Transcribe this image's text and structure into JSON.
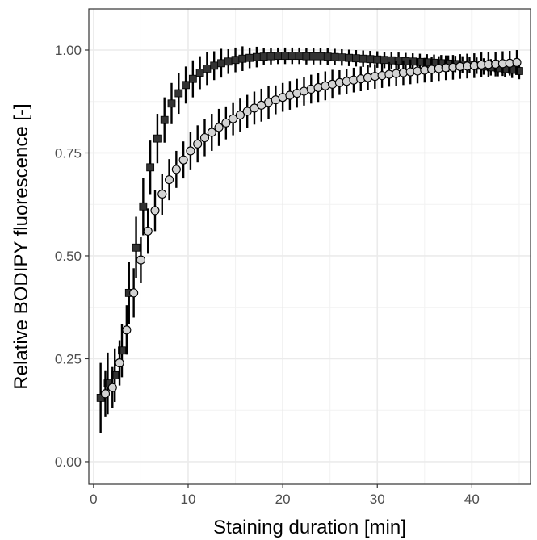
{
  "chart_data": {
    "type": "scatter",
    "title": "",
    "xlabel": "Staining duration [min]",
    "ylabel": "Relative BODIPY fluorescence [-]",
    "xlim": [
      -0.5,
      46.2
    ],
    "ylim": [
      -0.055,
      1.1
    ],
    "x_ticks": [
      0,
      10,
      20,
      30,
      40
    ],
    "x_tick_labels": [
      "0",
      "10",
      "20",
      "30",
      "40"
    ],
    "y_ticks": [
      0,
      0.25,
      0.5,
      0.75,
      1.0
    ],
    "y_tick_labels": [
      "0.00",
      "0.25",
      "0.50",
      "0.75",
      "1.00"
    ],
    "grid": true,
    "legend": "none",
    "series": [
      {
        "marker": "square",
        "color": "#333333",
        "x": [
          0.75,
          1.5,
          2.25,
          3.0,
          3.75,
          4.5,
          5.25,
          6.0,
          6.75,
          7.5,
          8.25,
          9.0,
          9.75,
          10.5,
          11.25,
          12.0,
          12.75,
          13.5,
          14.25,
          15.0,
          15.75,
          16.5,
          17.25,
          18.0,
          18.75,
          19.5,
          20.25,
          21.0,
          21.75,
          22.5,
          23.25,
          24.0,
          24.75,
          25.5,
          26.25,
          27.0,
          27.75,
          28.5,
          29.25,
          30.0,
          30.75,
          31.5,
          32.25,
          33.0,
          33.75,
          34.5,
          35.25,
          36.0,
          36.75,
          37.5,
          38.25,
          39.0,
          39.75,
          40.5,
          41.25,
          42.0,
          42.75,
          43.5,
          44.25,
          45.0
        ],
        "y": [
          0.155,
          0.19,
          0.21,
          0.27,
          0.41,
          0.52,
          0.62,
          0.715,
          0.785,
          0.83,
          0.87,
          0.895,
          0.915,
          0.93,
          0.945,
          0.955,
          0.962,
          0.968,
          0.972,
          0.976,
          0.979,
          0.981,
          0.983,
          0.984,
          0.985,
          0.986,
          0.986,
          0.986,
          0.986,
          0.985,
          0.985,
          0.985,
          0.984,
          0.983,
          0.982,
          0.981,
          0.98,
          0.979,
          0.978,
          0.977,
          0.976,
          0.975,
          0.974,
          0.973,
          0.972,
          0.971,
          0.97,
          0.969,
          0.968,
          0.967,
          0.966,
          0.965,
          0.964,
          0.962,
          0.96,
          0.958,
          0.956,
          0.954,
          0.952,
          0.949
        ],
        "error": [
          0.085,
          0.075,
          0.065,
          0.065,
          0.075,
          0.075,
          0.07,
          0.065,
          0.06,
          0.055,
          0.05,
          0.05,
          0.045,
          0.045,
          0.04,
          0.04,
          0.035,
          0.035,
          0.03,
          0.03,
          0.03,
          0.025,
          0.025,
          0.02,
          0.02,
          0.02,
          0.02,
          0.02,
          0.02,
          0.02,
          0.02,
          0.02,
          0.02,
          0.02,
          0.02,
          0.02,
          0.02,
          0.02,
          0.02,
          0.02,
          0.02,
          0.02,
          0.02,
          0.02,
          0.02,
          0.02,
          0.02,
          0.02,
          0.02,
          0.02,
          0.02,
          0.02,
          0.02,
          0.02,
          0.02,
          0.02,
          0.02,
          0.02,
          0.02,
          0.02
        ]
      },
      {
        "marker": "circle",
        "color": "#d3d3d3",
        "x": [
          1.25,
          2.0,
          2.75,
          3.5,
          4.25,
          5.0,
          5.75,
          6.5,
          7.25,
          8.0,
          8.75,
          9.5,
          10.25,
          11.0,
          11.75,
          12.5,
          13.25,
          14.0,
          14.75,
          15.5,
          16.25,
          17.0,
          17.75,
          18.5,
          19.25,
          20.0,
          20.75,
          21.5,
          22.25,
          23.0,
          23.75,
          24.5,
          25.25,
          26.0,
          26.75,
          27.5,
          28.25,
          29.0,
          29.75,
          30.5,
          31.25,
          32.0,
          32.75,
          33.5,
          34.25,
          35.0,
          35.75,
          36.5,
          37.25,
          38.0,
          38.75,
          39.5,
          40.25,
          41.0,
          41.75,
          42.5,
          43.25,
          44.0,
          44.75
        ],
        "y": [
          0.165,
          0.18,
          0.24,
          0.32,
          0.41,
          0.49,
          0.56,
          0.61,
          0.65,
          0.685,
          0.71,
          0.733,
          0.755,
          0.772,
          0.787,
          0.8,
          0.812,
          0.823,
          0.833,
          0.842,
          0.851,
          0.859,
          0.866,
          0.873,
          0.879,
          0.885,
          0.89,
          0.895,
          0.9,
          0.905,
          0.909,
          0.913,
          0.917,
          0.921,
          0.924,
          0.927,
          0.93,
          0.933,
          0.936,
          0.938,
          0.941,
          0.943,
          0.945,
          0.947,
          0.949,
          0.951,
          0.953,
          0.955,
          0.957,
          0.958,
          0.96,
          0.961,
          0.962,
          0.964,
          0.965,
          0.966,
          0.967,
          0.968,
          0.97
        ],
        "error": [
          0.055,
          0.05,
          0.055,
          0.06,
          0.06,
          0.055,
          0.055,
          0.05,
          0.05,
          0.05,
          0.045,
          0.045,
          0.045,
          0.045,
          0.045,
          0.045,
          0.045,
          0.04,
          0.04,
          0.04,
          0.04,
          0.04,
          0.04,
          0.04,
          0.035,
          0.035,
          0.035,
          0.035,
          0.035,
          0.035,
          0.035,
          0.035,
          0.035,
          0.03,
          0.03,
          0.03,
          0.03,
          0.03,
          0.03,
          0.03,
          0.03,
          0.03,
          0.03,
          0.03,
          0.03,
          0.03,
          0.03,
          0.03,
          0.03,
          0.03,
          0.03,
          0.03,
          0.03,
          0.03,
          0.03,
          0.03,
          0.03,
          0.03,
          0.03
        ]
      }
    ]
  }
}
